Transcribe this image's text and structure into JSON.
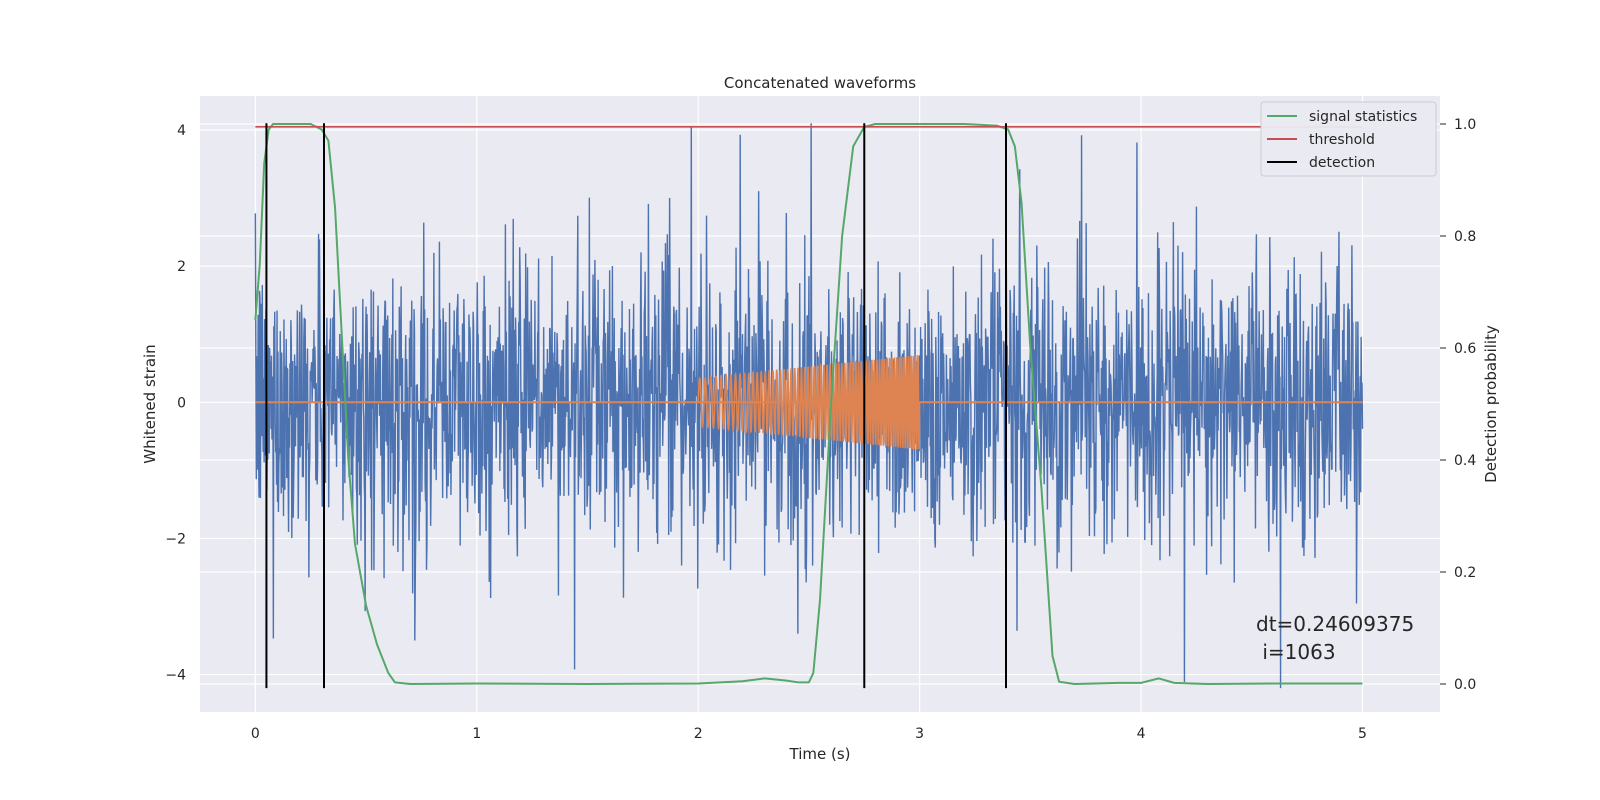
{
  "chart_data": {
    "type": "line",
    "title": "Concatenated waveforms",
    "xlabel": "Time (s)",
    "ylabel_left": "Whitened strain",
    "ylabel_right": "Detection probability",
    "xlim": [
      -0.25,
      5.35
    ],
    "ylim_left": [
      -4.55,
      4.5
    ],
    "ylim_right": [
      -0.05,
      1.05
    ],
    "x_ticks": [
      0,
      1,
      2,
      3,
      4,
      5
    ],
    "y_ticks_left": [
      -4,
      -2,
      0,
      2,
      4
    ],
    "y_ticks_right": [
      0.0,
      0.2,
      0.4,
      0.6,
      0.8,
      1.0
    ],
    "y_tick_labels_right": [
      "0.0",
      "0.2",
      "0.4",
      "0.6",
      "0.8",
      "1.0"
    ],
    "grid": true,
    "legend_placement": "top-right",
    "colors": {
      "noise": "#4c72b0",
      "injection": "#dd8452",
      "signal_statistics": "#55a868",
      "threshold": "#c44e52",
      "detection": "#000000",
      "background": "#eaeaf2"
    },
    "series": [
      {
        "name": "",
        "axis": "left",
        "kind": "whitened-noise",
        "x_range": [
          0,
          5
        ],
        "typical_amplitude": 1.0,
        "peak_max": 4.1,
        "peak_min": -4.2
      },
      {
        "name": "",
        "axis": "left",
        "kind": "injected-chirp",
        "x_range": [
          2.0,
          3.0
        ],
        "amplitude_start": 0.35,
        "amplitude_end": 0.7,
        "baseline_x_range": [
          0,
          5
        ],
        "baseline_value": 0
      },
      {
        "name": "signal statistics",
        "axis": "right",
        "x": [
          0.0,
          0.02,
          0.04,
          0.06,
          0.08,
          0.1,
          0.15,
          0.2,
          0.25,
          0.3,
          0.33,
          0.36,
          0.38,
          0.4,
          0.42,
          0.45,
          0.5,
          0.55,
          0.6,
          0.63,
          0.7,
          1.0,
          1.5,
          2.0,
          2.2,
          2.3,
          2.4,
          2.45,
          2.5,
          2.52,
          2.55,
          2.6,
          2.65,
          2.7,
          2.75,
          2.8,
          2.9,
          3.0,
          3.2,
          3.35,
          3.4,
          3.43,
          3.46,
          3.5,
          3.55,
          3.6,
          3.63,
          3.7,
          3.9,
          4.0,
          4.08,
          4.15,
          4.3,
          4.6,
          5.0
        ],
        "values": [
          0.65,
          0.75,
          0.93,
          0.99,
          1.0,
          1.0,
          1.0,
          1.0,
          1.0,
          0.99,
          0.97,
          0.85,
          0.7,
          0.55,
          0.4,
          0.25,
          0.14,
          0.07,
          0.02,
          0.003,
          0.0,
          0.001,
          0.0,
          0.001,
          0.005,
          0.01,
          0.006,
          0.003,
          0.003,
          0.02,
          0.15,
          0.5,
          0.8,
          0.96,
          0.995,
          1.0,
          1.0,
          1.0,
          1.0,
          0.997,
          0.99,
          0.96,
          0.86,
          0.6,
          0.35,
          0.05,
          0.004,
          0.0,
          0.002,
          0.002,
          0.01,
          0.002,
          0.0,
          0.001,
          0.001
        ]
      },
      {
        "name": "threshold",
        "axis": "right",
        "x": [
          0,
          5
        ],
        "values": [
          0.995,
          0.995
        ]
      },
      {
        "name": "detection",
        "axis": "left",
        "kind": "vertical-lines",
        "x": [
          0.05,
          0.31,
          2.75,
          3.39
        ],
        "y_range": [
          -4.2,
          4.1
        ]
      }
    ],
    "annotation": {
      "lines": [
        "dt=0.24609375",
        " i=1063"
      ],
      "x": 4.5,
      "y": -3.25
    }
  }
}
